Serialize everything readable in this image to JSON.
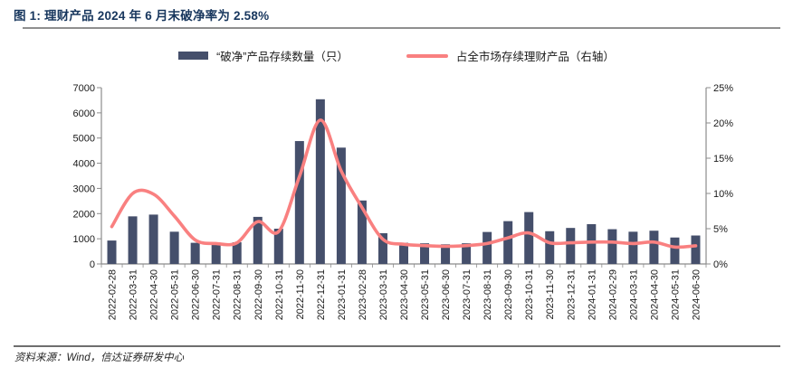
{
  "page": {
    "title": "图 1: 理财产品 2024 年 6 月末破净率为 2.58%",
    "source_note": "资料来源：Wind，信达证券研发中心"
  },
  "legend": {
    "bar_label": "“破净”产品存续数量（只）",
    "line_label": "占全市场存续理财产品（右轴）"
  },
  "colors": {
    "title": "#17365d",
    "bar": "#454f6b",
    "line": "#f98080",
    "axis": "#8c8c8c",
    "tick_text": "#1a1a1a"
  },
  "chart_data": {
    "type": "bar",
    "title": "理财产品 2024 年 6 月末破净率为 2.58%",
    "categories": [
      "2022-02-28",
      "2022-03-31",
      "2022-04-30",
      "2022-05-31",
      "2022-06-30",
      "2022-07-31",
      "2022-08-31",
      "2022-09-30",
      "2022-10-31",
      "2022-11-30",
      "2022-12-31",
      "2023-01-31",
      "2023-02-28",
      "2023-03-31",
      "2023-04-30",
      "2023-05-31",
      "2023-06-30",
      "2023-07-31",
      "2023-08-31",
      "2023-09-30",
      "2023-10-31",
      "2023-11-30",
      "2023-12-31",
      "2024-01-31",
      "2024-02-29",
      "2024-03-31",
      "2024-04-30",
      "2024-05-31",
      "2024-06-30"
    ],
    "series": [
      {
        "name": "“破净”产品存续数量（只）",
        "type": "bar",
        "yaxis": "left",
        "color": "#454f6b",
        "values": [
          930,
          1890,
          1960,
          1280,
          840,
          790,
          860,
          1870,
          1400,
          4880,
          6540,
          4620,
          2520,
          1220,
          840,
          820,
          780,
          820,
          1270,
          1700,
          2060,
          1300,
          1430,
          1580,
          1380,
          1280,
          1320,
          1050,
          1130
        ]
      },
      {
        "name": "占全市场存续理财产品（右轴）",
        "type": "line",
        "yaxis": "right",
        "color": "#f98080",
        "values_pct": [
          5.3,
          10.0,
          9.9,
          6.8,
          3.4,
          2.9,
          3.0,
          6.0,
          4.6,
          12.4,
          20.4,
          13.2,
          8.0,
          3.5,
          2.8,
          2.6,
          2.5,
          2.6,
          2.9,
          3.7,
          4.4,
          3.0,
          3.0,
          3.1,
          3.1,
          2.9,
          3.1,
          2.4,
          2.58
        ]
      }
    ],
    "left_axis": {
      "label_ticks": [
        "0",
        "1000",
        "2000",
        "3000",
        "4000",
        "5000",
        "6000",
        "7000"
      ],
      "range": [
        0,
        7000
      ],
      "step": 1000
    },
    "right_axis": {
      "label_ticks": [
        "0%",
        "5%",
        "10%",
        "15%",
        "20%",
        "25%"
      ],
      "range": [
        0,
        25
      ],
      "step": 5
    },
    "grid": false,
    "legend_position": "top"
  }
}
